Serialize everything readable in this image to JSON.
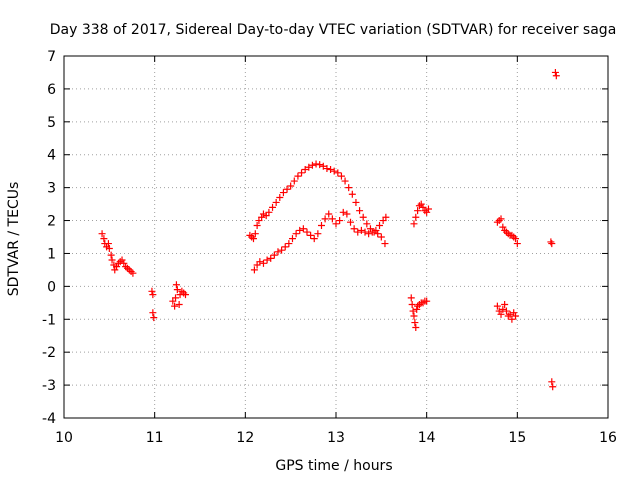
{
  "chart_data": {
    "type": "scatter",
    "title": "Day 338 of 2017, Sidereal Day-to-day VTEC variation (SDTVAR) for receiver saga",
    "xlabel": "GPS time / hours",
    "ylabel": "SDTVAR / TECUs",
    "xlim": [
      10,
      16
    ],
    "ylim": [
      -4,
      7
    ],
    "xticks": [
      "10",
      "11",
      "12",
      "13",
      "14",
      "15",
      "16"
    ],
    "yticks": [
      "-4",
      "-3",
      "-2",
      "-1",
      "0",
      "1",
      "2",
      "3",
      "4",
      "5",
      "6",
      "7"
    ],
    "grid": true,
    "marker": "+",
    "series": [
      {
        "name": "SDTVAR",
        "color": "#ff0000",
        "points": [
          [
            10.42,
            1.6
          ],
          [
            10.44,
            1.45
          ],
          [
            10.45,
            1.3
          ],
          [
            10.47,
            1.2
          ],
          [
            10.49,
            1.3
          ],
          [
            10.5,
            1.15
          ],
          [
            10.52,
            0.95
          ],
          [
            10.53,
            0.8
          ],
          [
            10.55,
            0.65
          ],
          [
            10.56,
            0.5
          ],
          [
            10.58,
            0.6
          ],
          [
            10.6,
            0.7
          ],
          [
            10.62,
            0.75
          ],
          [
            10.64,
            0.8
          ],
          [
            10.66,
            0.7
          ],
          [
            10.68,
            0.6
          ],
          [
            10.7,
            0.55
          ],
          [
            10.72,
            0.5
          ],
          [
            10.74,
            0.45
          ],
          [
            10.76,
            0.4
          ],
          [
            10.97,
            -0.15
          ],
          [
            10.98,
            -0.25
          ],
          [
            10.98,
            -0.8
          ],
          [
            10.99,
            -0.95
          ],
          [
            11.2,
            -0.45
          ],
          [
            11.22,
            -0.6
          ],
          [
            11.23,
            -0.35
          ],
          [
            11.24,
            0.05
          ],
          [
            11.25,
            -0.1
          ],
          [
            11.27,
            -0.55
          ],
          [
            11.28,
            -0.25
          ],
          [
            11.3,
            -0.15
          ],
          [
            11.32,
            -0.2
          ],
          [
            11.34,
            -0.25
          ],
          [
            12.05,
            1.55
          ],
          [
            12.07,
            1.5
          ],
          [
            12.09,
            1.45
          ],
          [
            12.11,
            1.6
          ],
          [
            12.13,
            1.85
          ],
          [
            12.15,
            2.0
          ],
          [
            12.18,
            2.1
          ],
          [
            12.2,
            2.2
          ],
          [
            12.23,
            2.15
          ],
          [
            12.26,
            2.25
          ],
          [
            12.3,
            2.4
          ],
          [
            12.34,
            2.55
          ],
          [
            12.38,
            2.7
          ],
          [
            12.42,
            2.85
          ],
          [
            12.46,
            2.95
          ],
          [
            12.5,
            3.05
          ],
          [
            12.54,
            3.2
          ],
          [
            12.58,
            3.35
          ],
          [
            12.62,
            3.45
          ],
          [
            12.66,
            3.55
          ],
          [
            12.7,
            3.62
          ],
          [
            12.74,
            3.68
          ],
          [
            12.78,
            3.72
          ],
          [
            12.82,
            3.7
          ],
          [
            12.86,
            3.65
          ],
          [
            12.9,
            3.58
          ],
          [
            12.94,
            3.55
          ],
          [
            12.98,
            3.5
          ],
          [
            13.02,
            3.45
          ],
          [
            13.06,
            3.35
          ],
          [
            13.1,
            3.2
          ],
          [
            13.14,
            3.0
          ],
          [
            13.18,
            2.8
          ],
          [
            13.22,
            2.55
          ],
          [
            13.26,
            2.3
          ],
          [
            13.3,
            2.1
          ],
          [
            13.34,
            1.9
          ],
          [
            13.38,
            1.75
          ],
          [
            13.42,
            1.65
          ],
          [
            13.46,
            1.6
          ],
          [
            13.5,
            1.5
          ],
          [
            13.54,
            1.3
          ],
          [
            12.1,
            0.5
          ],
          [
            12.13,
            0.65
          ],
          [
            12.16,
            0.75
          ],
          [
            12.2,
            0.7
          ],
          [
            12.24,
            0.8
          ],
          [
            12.28,
            0.85
          ],
          [
            12.32,
            0.95
          ],
          [
            12.36,
            1.05
          ],
          [
            12.4,
            1.1
          ],
          [
            12.44,
            1.2
          ],
          [
            12.48,
            1.3
          ],
          [
            12.52,
            1.45
          ],
          [
            12.56,
            1.6
          ],
          [
            12.6,
            1.7
          ],
          [
            12.64,
            1.75
          ],
          [
            12.68,
            1.65
          ],
          [
            12.72,
            1.55
          ],
          [
            12.76,
            1.45
          ],
          [
            12.8,
            1.6
          ],
          [
            12.84,
            1.85
          ],
          [
            12.88,
            2.05
          ],
          [
            12.92,
            2.2
          ],
          [
            12.96,
            2.05
          ],
          [
            13.0,
            1.9
          ],
          [
            13.04,
            2.0
          ],
          [
            13.08,
            2.25
          ],
          [
            13.12,
            2.2
          ],
          [
            13.16,
            1.95
          ],
          [
            13.2,
            1.75
          ],
          [
            13.24,
            1.65
          ],
          [
            13.28,
            1.7
          ],
          [
            13.32,
            1.65
          ],
          [
            13.36,
            1.6
          ],
          [
            13.4,
            1.65
          ],
          [
            13.44,
            1.7
          ],
          [
            13.48,
            1.85
          ],
          [
            13.52,
            2.0
          ],
          [
            13.55,
            2.1
          ],
          [
            13.83,
            -0.35
          ],
          [
            13.84,
            -0.55
          ],
          [
            13.85,
            -0.75
          ],
          [
            13.86,
            -0.9
          ],
          [
            13.87,
            -1.1
          ],
          [
            13.88,
            -1.25
          ],
          [
            13.89,
            -0.7
          ],
          [
            13.9,
            -0.6
          ],
          [
            13.92,
            -0.55
          ],
          [
            13.94,
            -0.5
          ],
          [
            13.96,
            -0.5
          ],
          [
            13.98,
            -0.45
          ],
          [
            14.0,
            -0.45
          ],
          [
            13.86,
            1.9
          ],
          [
            13.88,
            2.1
          ],
          [
            13.9,
            2.3
          ],
          [
            13.92,
            2.45
          ],
          [
            13.94,
            2.5
          ],
          [
            13.96,
            2.4
          ],
          [
            13.98,
            2.3
          ],
          [
            14.0,
            2.25
          ],
          [
            14.02,
            2.35
          ],
          [
            14.78,
            -0.6
          ],
          [
            14.8,
            -0.75
          ],
          [
            14.82,
            -0.85
          ],
          [
            14.84,
            -0.7
          ],
          [
            14.86,
            -0.55
          ],
          [
            14.88,
            -0.75
          ],
          [
            14.9,
            -0.9
          ],
          [
            14.92,
            -0.85
          ],
          [
            14.94,
            -1.0
          ],
          [
            14.96,
            -0.8
          ],
          [
            14.98,
            -0.9
          ],
          [
            14.78,
            1.95
          ],
          [
            14.8,
            2.0
          ],
          [
            14.82,
            2.05
          ],
          [
            14.84,
            1.8
          ],
          [
            14.86,
            1.7
          ],
          [
            14.88,
            1.65
          ],
          [
            14.9,
            1.6
          ],
          [
            14.92,
            1.55
          ],
          [
            14.94,
            1.55
          ],
          [
            14.96,
            1.5
          ],
          [
            14.98,
            1.45
          ],
          [
            15.0,
            1.3
          ],
          [
            15.37,
            1.35
          ],
          [
            15.38,
            1.3
          ],
          [
            15.38,
            -2.9
          ],
          [
            15.39,
            -3.05
          ],
          [
            15.42,
            6.5
          ],
          [
            15.43,
            6.4
          ]
        ]
      }
    ]
  }
}
